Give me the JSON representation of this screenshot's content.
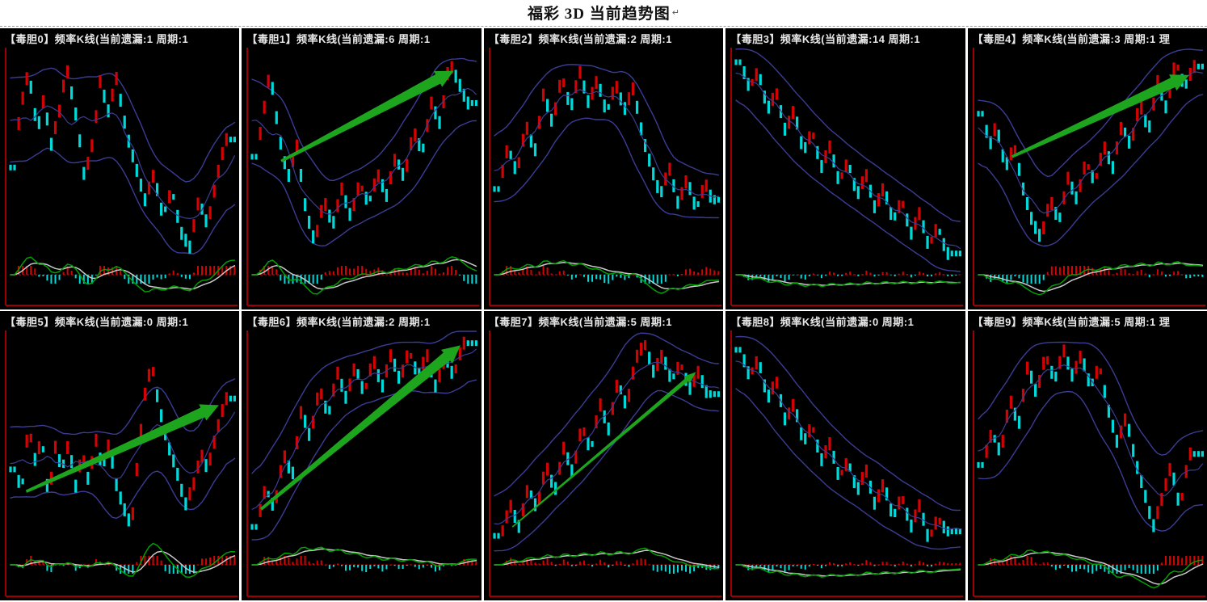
{
  "page": {
    "title": "福彩 3D 当前趋势图",
    "paragraph_mark": "↵"
  },
  "colors": {
    "page_bg": "#ffffff",
    "separator": "#9a9a9a",
    "panel_bg": "#000000",
    "panel_border_red": "#a00000",
    "candle_up": "#d40202",
    "candle_down": "#00d9d9",
    "bollinger": "#3c3c96",
    "macd_green": "#00a000",
    "macd_white": "#c8c8c8",
    "zero_line": "#b40000",
    "arrow_green": "#1ea51e",
    "header_text": "#e8e8e8"
  },
  "chart_data": {
    "type": "candlestick-grid",
    "title": "福彩 3D 当前趋势图",
    "layout": "2 rows x 5 columns of frequency K-line charts with Bollinger bands, MACD indicator and trend arrows",
    "panels": [
      {
        "id": 0,
        "header": "【毒胆0】频率K线(当前遗漏:1  周期:1",
        "digit": "毒胆0",
        "miss": 1,
        "period": 1,
        "extra": "",
        "trend": [
          [
            0.02,
            0.55
          ],
          [
            0.04,
            0.3
          ],
          [
            0.08,
            0.1
          ],
          [
            0.12,
            0.38
          ],
          [
            0.15,
            0.22
          ],
          [
            0.18,
            0.45
          ],
          [
            0.22,
            0.28
          ],
          [
            0.25,
            0.08
          ],
          [
            0.3,
            0.35
          ],
          [
            0.33,
            0.6
          ],
          [
            0.37,
            0.42
          ],
          [
            0.4,
            0.15
          ],
          [
            0.44,
            0.3
          ],
          [
            0.47,
            0.12
          ],
          [
            0.52,
            0.4
          ],
          [
            0.56,
            0.55
          ],
          [
            0.6,
            0.7
          ],
          [
            0.64,
            0.58
          ],
          [
            0.68,
            0.78
          ],
          [
            0.72,
            0.65
          ],
          [
            0.76,
            0.85
          ],
          [
            0.8,
            0.92
          ],
          [
            0.84,
            0.7
          ],
          [
            0.88,
            0.82
          ],
          [
            0.92,
            0.6
          ],
          [
            0.96,
            0.42
          ]
        ],
        "arrow": null
      },
      {
        "id": 1,
        "header": "【毒胆1】频率K线(当前遗漏:6  周期:1",
        "digit": "毒胆1",
        "miss": 6,
        "period": 1,
        "extra": "",
        "trend": [
          [
            0.02,
            0.5
          ],
          [
            0.05,
            0.3
          ],
          [
            0.08,
            0.1
          ],
          [
            0.12,
            0.4
          ],
          [
            0.16,
            0.6
          ],
          [
            0.2,
            0.45
          ],
          [
            0.24,
            0.75
          ],
          [
            0.28,
            0.9
          ],
          [
            0.32,
            0.7
          ],
          [
            0.36,
            0.82
          ],
          [
            0.4,
            0.65
          ],
          [
            0.44,
            0.78
          ],
          [
            0.48,
            0.62
          ],
          [
            0.52,
            0.72
          ],
          [
            0.56,
            0.58
          ],
          [
            0.6,
            0.68
          ],
          [
            0.64,
            0.5
          ],
          [
            0.68,
            0.6
          ],
          [
            0.72,
            0.38
          ],
          [
            0.76,
            0.48
          ],
          [
            0.8,
            0.25
          ],
          [
            0.84,
            0.35
          ],
          [
            0.88,
            0.06
          ],
          [
            0.92,
            0.15
          ],
          [
            0.96,
            0.25
          ]
        ],
        "arrow": {
          "from": [
            0.13,
            0.52
          ],
          "to": [
            0.9,
            0.1
          ],
          "thin": false
        }
      },
      {
        "id": 2,
        "header": "【毒胆2】频率K线(当前遗漏:2  周期:1",
        "digit": "毒胆2",
        "miss": 2,
        "period": 1,
        "extra": "",
        "trend": [
          [
            0.02,
            0.65
          ],
          [
            0.06,
            0.45
          ],
          [
            0.1,
            0.58
          ],
          [
            0.14,
            0.35
          ],
          [
            0.18,
            0.48
          ],
          [
            0.22,
            0.2
          ],
          [
            0.26,
            0.35
          ],
          [
            0.3,
            0.12
          ],
          [
            0.34,
            0.28
          ],
          [
            0.38,
            0.1
          ],
          [
            0.42,
            0.25
          ],
          [
            0.46,
            0.14
          ],
          [
            0.5,
            0.3
          ],
          [
            0.54,
            0.16
          ],
          [
            0.58,
            0.28
          ],
          [
            0.62,
            0.18
          ],
          [
            0.66,
            0.4
          ],
          [
            0.7,
            0.55
          ],
          [
            0.74,
            0.68
          ],
          [
            0.78,
            0.55
          ],
          [
            0.82,
            0.72
          ],
          [
            0.86,
            0.6
          ],
          [
            0.9,
            0.75
          ],
          [
            0.94,
            0.62
          ],
          [
            0.97,
            0.7
          ]
        ],
        "arrow": null
      },
      {
        "id": 3,
        "header": "【毒胆3】频率K线(当前遗漏:14  周期:1",
        "digit": "毒胆3",
        "miss": 14,
        "period": 1,
        "extra": "",
        "trend": [
          [
            0.02,
            0.06
          ],
          [
            0.06,
            0.18
          ],
          [
            0.1,
            0.1
          ],
          [
            0.14,
            0.28
          ],
          [
            0.18,
            0.2
          ],
          [
            0.22,
            0.38
          ],
          [
            0.26,
            0.28
          ],
          [
            0.3,
            0.48
          ],
          [
            0.34,
            0.38
          ],
          [
            0.38,
            0.55
          ],
          [
            0.42,
            0.45
          ],
          [
            0.46,
            0.62
          ],
          [
            0.5,
            0.52
          ],
          [
            0.54,
            0.68
          ],
          [
            0.58,
            0.58
          ],
          [
            0.62,
            0.74
          ],
          [
            0.66,
            0.64
          ],
          [
            0.7,
            0.8
          ],
          [
            0.74,
            0.7
          ],
          [
            0.78,
            0.86
          ],
          [
            0.82,
            0.76
          ],
          [
            0.86,
            0.92
          ],
          [
            0.9,
            0.82
          ],
          [
            0.94,
            0.95
          ]
        ],
        "arrow": null
      },
      {
        "id": 4,
        "header": "【毒胆4】频率K线(当前遗漏:3  周期:1  理",
        "digit": "毒胆4",
        "miss": 3,
        "period": 1,
        "extra": "理",
        "trend": [
          [
            0.02,
            0.3
          ],
          [
            0.05,
            0.45
          ],
          [
            0.08,
            0.35
          ],
          [
            0.12,
            0.55
          ],
          [
            0.16,
            0.45
          ],
          [
            0.2,
            0.65
          ],
          [
            0.24,
            0.8
          ],
          [
            0.28,
            0.88
          ],
          [
            0.32,
            0.7
          ],
          [
            0.36,
            0.8
          ],
          [
            0.4,
            0.6
          ],
          [
            0.44,
            0.7
          ],
          [
            0.48,
            0.52
          ],
          [
            0.52,
            0.62
          ],
          [
            0.56,
            0.45
          ],
          [
            0.6,
            0.55
          ],
          [
            0.64,
            0.35
          ],
          [
            0.68,
            0.45
          ],
          [
            0.72,
            0.25
          ],
          [
            0.76,
            0.38
          ],
          [
            0.8,
            0.15
          ],
          [
            0.84,
            0.28
          ],
          [
            0.88,
            0.05
          ],
          [
            0.92,
            0.18
          ],
          [
            0.96,
            0.08
          ]
        ],
        "arrow": {
          "from": [
            0.15,
            0.5
          ],
          "to": [
            0.94,
            0.12
          ],
          "thin": false
        }
      },
      {
        "id": 5,
        "header": "【毒胆5】频率K线(当前遗漏:0  周期:1",
        "digit": "毒胆5",
        "miss": 0,
        "period": 1,
        "extra": "",
        "trend": [
          [
            0.02,
            0.62
          ],
          [
            0.05,
            0.72
          ],
          [
            0.08,
            0.42
          ],
          [
            0.11,
            0.58
          ],
          [
            0.14,
            0.48
          ],
          [
            0.17,
            0.75
          ],
          [
            0.2,
            0.52
          ],
          [
            0.23,
            0.62
          ],
          [
            0.26,
            0.5
          ],
          [
            0.29,
            0.7
          ],
          [
            0.32,
            0.55
          ],
          [
            0.35,
            0.68
          ],
          [
            0.38,
            0.48
          ],
          [
            0.41,
            0.62
          ],
          [
            0.44,
            0.5
          ],
          [
            0.47,
            0.68
          ],
          [
            0.5,
            0.78
          ],
          [
            0.54,
            0.88
          ],
          [
            0.57,
            0.55
          ],
          [
            0.6,
            0.28
          ],
          [
            0.63,
            0.14
          ],
          [
            0.66,
            0.32
          ],
          [
            0.7,
            0.5
          ],
          [
            0.74,
            0.62
          ],
          [
            0.78,
            0.78
          ],
          [
            0.82,
            0.68
          ],
          [
            0.85,
            0.55
          ],
          [
            0.88,
            0.62
          ],
          [
            0.92,
            0.45
          ],
          [
            0.96,
            0.3
          ]
        ],
        "arrow": {
          "from": [
            0.07,
            0.72
          ],
          "to": [
            0.93,
            0.33
          ],
          "thin": false
        }
      },
      {
        "id": 6,
        "header": "【毒胆6】频率K线(当前遗漏:2  周期:1",
        "digit": "毒胆6",
        "miss": 2,
        "period": 1,
        "extra": "",
        "trend": [
          [
            0.02,
            0.88
          ],
          [
            0.06,
            0.7
          ],
          [
            0.1,
            0.8
          ],
          [
            0.14,
            0.55
          ],
          [
            0.18,
            0.65
          ],
          [
            0.22,
            0.35
          ],
          [
            0.26,
            0.48
          ],
          [
            0.3,
            0.25
          ],
          [
            0.34,
            0.38
          ],
          [
            0.38,
            0.18
          ],
          [
            0.42,
            0.3
          ],
          [
            0.46,
            0.15
          ],
          [
            0.5,
            0.28
          ],
          [
            0.54,
            0.12
          ],
          [
            0.58,
            0.25
          ],
          [
            0.62,
            0.1
          ],
          [
            0.66,
            0.22
          ],
          [
            0.7,
            0.08
          ],
          [
            0.74,
            0.2
          ],
          [
            0.78,
            0.1
          ],
          [
            0.82,
            0.25
          ],
          [
            0.86,
            0.12
          ],
          [
            0.9,
            0.2
          ],
          [
            0.94,
            0.05
          ]
        ],
        "arrow": {
          "from": [
            0.04,
            0.8
          ],
          "to": [
            0.93,
            0.06
          ],
          "thin": false
        }
      },
      {
        "id": 7,
        "header": "【毒胆7】频率K线(当前遗漏:5  周期:1",
        "digit": "毒胆7",
        "miss": 5,
        "period": 1,
        "extra": "",
        "trend": [
          [
            0.03,
            0.92
          ],
          [
            0.07,
            0.78
          ],
          [
            0.11,
            0.88
          ],
          [
            0.15,
            0.7
          ],
          [
            0.19,
            0.8
          ],
          [
            0.23,
            0.6
          ],
          [
            0.27,
            0.72
          ],
          [
            0.31,
            0.52
          ],
          [
            0.35,
            0.64
          ],
          [
            0.39,
            0.42
          ],
          [
            0.43,
            0.54
          ],
          [
            0.47,
            0.32
          ],
          [
            0.51,
            0.44
          ],
          [
            0.55,
            0.22
          ],
          [
            0.59,
            0.34
          ],
          [
            0.63,
            0.12
          ],
          [
            0.67,
            0.05
          ],
          [
            0.71,
            0.18
          ],
          [
            0.75,
            0.1
          ],
          [
            0.79,
            0.22
          ],
          [
            0.83,
            0.14
          ],
          [
            0.87,
            0.26
          ],
          [
            0.91,
            0.18
          ],
          [
            0.95,
            0.28
          ]
        ],
        "arrow": {
          "from": [
            0.08,
            0.88
          ],
          "to": [
            0.9,
            0.18
          ],
          "thin": true
        }
      },
      {
        "id": 8,
        "header": "【毒胆8】频率K线(当前遗漏:0  周期:1",
        "digit": "毒胆8",
        "miss": 0,
        "period": 1,
        "extra": "",
        "trend": [
          [
            0.02,
            0.08
          ],
          [
            0.06,
            0.2
          ],
          [
            0.1,
            0.12
          ],
          [
            0.14,
            0.3
          ],
          [
            0.18,
            0.22
          ],
          [
            0.22,
            0.4
          ],
          [
            0.26,
            0.32
          ],
          [
            0.3,
            0.5
          ],
          [
            0.34,
            0.42
          ],
          [
            0.38,
            0.58
          ],
          [
            0.42,
            0.5
          ],
          [
            0.46,
            0.66
          ],
          [
            0.5,
            0.58
          ],
          [
            0.54,
            0.72
          ],
          [
            0.58,
            0.62
          ],
          [
            0.62,
            0.78
          ],
          [
            0.66,
            0.68
          ],
          [
            0.7,
            0.84
          ],
          [
            0.74,
            0.74
          ],
          [
            0.78,
            0.88
          ],
          [
            0.82,
            0.78
          ],
          [
            0.86,
            0.94
          ],
          [
            0.9,
            0.84
          ],
          [
            0.94,
            0.9
          ]
        ],
        "arrow": null
      },
      {
        "id": 9,
        "header": "【毒胆9】频率K线(当前遗漏:5  周期:1  理",
        "digit": "毒胆9",
        "miss": 5,
        "period": 1,
        "extra": "理",
        "trend": [
          [
            0.02,
            0.6
          ],
          [
            0.06,
            0.45
          ],
          [
            0.1,
            0.55
          ],
          [
            0.14,
            0.3
          ],
          [
            0.18,
            0.42
          ],
          [
            0.22,
            0.15
          ],
          [
            0.26,
            0.28
          ],
          [
            0.3,
            0.1
          ],
          [
            0.34,
            0.22
          ],
          [
            0.38,
            0.08
          ],
          [
            0.42,
            0.2
          ],
          [
            0.46,
            0.1
          ],
          [
            0.5,
            0.25
          ],
          [
            0.54,
            0.15
          ],
          [
            0.58,
            0.35
          ],
          [
            0.62,
            0.5
          ],
          [
            0.66,
            0.38
          ],
          [
            0.7,
            0.58
          ],
          [
            0.74,
            0.72
          ],
          [
            0.78,
            0.88
          ],
          [
            0.82,
            0.75
          ],
          [
            0.86,
            0.6
          ],
          [
            0.9,
            0.8
          ],
          [
            0.94,
            0.55
          ]
        ],
        "arrow": null
      }
    ]
  }
}
